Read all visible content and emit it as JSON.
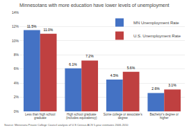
{
  "chart_data": {
    "type": "bar",
    "title": "Minnesotans with more education have lower levels of unemployment",
    "categories": [
      "Less than high school\ngraduate",
      "High school graduate\n(includes equivalency)",
      "Some college or associate's\ndegree",
      "Bachelor's degree or\nhigher"
    ],
    "series": [
      {
        "name": "MN Unemployment Rate",
        "color": "#4472C4",
        "values": [
          11.5,
          6.1,
          4.5,
          2.6
        ],
        "value_labels": [
          "11.5%",
          "6.1%",
          "4.5%",
          "2.6%"
        ]
      },
      {
        "name": "U.S. Unemployment Rate",
        "color": "#BF4040",
        "values": [
          11.0,
          7.2,
          5.6,
          3.1
        ],
        "value_labels": [
          "11.0%",
          "7.2%",
          "5.6%",
          "3.1%"
        ]
      }
    ],
    "ylim": [
      0,
      14
    ],
    "yticks": [
      {
        "value": 0,
        "label": "0%"
      },
      {
        "value": 2,
        "label": "2%"
      },
      {
        "value": 4,
        "label": "4%"
      },
      {
        "value": 6,
        "label": "6%"
      },
      {
        "value": 8,
        "label": "8%"
      },
      {
        "value": 10,
        "label": "10%"
      },
      {
        "value": 12,
        "label": "12%"
      },
      {
        "value": 14,
        "label": "14%"
      }
    ],
    "grid": true,
    "legend": "upper right",
    "data_labels": true,
    "annotations": [
      "Source: Minnesota Private College Council analysis of U.S Census ACS 5-year estimates 2006-2010"
    ]
  }
}
